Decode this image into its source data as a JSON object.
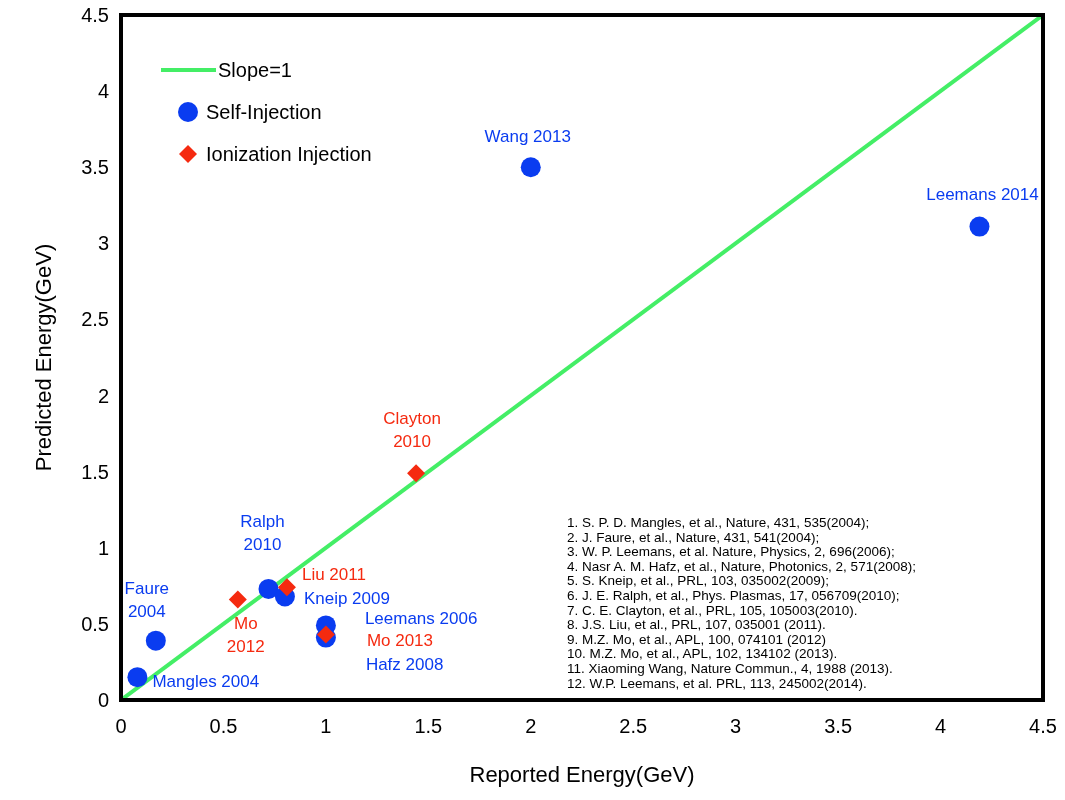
{
  "chart_data": {
    "type": "scatter",
    "xlabel": "Reported Energy(GeV)",
    "ylabel": "Predicted  Energy(GeV)",
    "xlim": [
      0,
      4.5
    ],
    "ylim": [
      0,
      4.5
    ],
    "xticks": [
      0,
      0.5,
      1,
      1.5,
      2,
      2.5,
      3,
      3.5,
      4,
      4.5
    ],
    "yticks": [
      0,
      0.5,
      1,
      1.5,
      2,
      2.5,
      3,
      3.5,
      4,
      4.5
    ],
    "grid": false,
    "legend": "top left",
    "series": [
      {
        "name": "Slope=1",
        "type": "line",
        "color": "#44ee66",
        "marker": "none",
        "x": [
          0,
          4.5
        ],
        "values": [
          0,
          4.5
        ]
      },
      {
        "name": "Self-Injection",
        "color": "#0a3cf0",
        "marker": "circle",
        "x": [
          0.08,
          0.17,
          0.72,
          0.8,
          1.0,
          1.0,
          2.0,
          4.19
        ],
        "values": [
          0.15,
          0.39,
          0.73,
          0.68,
          0.49,
          0.41,
          3.5,
          3.11
        ]
      },
      {
        "name": "Ionization Injection",
        "color": "#f52a10",
        "marker": "diamond",
        "x": [
          0.57,
          0.81,
          1.0,
          1.44
        ],
        "values": [
          0.66,
          0.74,
          0.43,
          1.49
        ]
      }
    ],
    "annotations": [
      {
        "text": "Mangles  2004",
        "x": 0.08,
        "y": 0.15
      },
      {
        "text": "Faure\n2004",
        "x": 0.17,
        "y": 0.39
      },
      {
        "text": "Ralph\n2010",
        "x": 0.72,
        "y": 0.73
      },
      {
        "text": "Kneip  2009",
        "x": 0.8,
        "y": 0.68
      },
      {
        "text": "Leemans 2006",
        "x": 1.0,
        "y": 0.49
      },
      {
        "text": "Hafz 2008",
        "x": 1.0,
        "y": 0.41
      },
      {
        "text": "Wang 2013",
        "x": 2.0,
        "y": 3.5
      },
      {
        "text": "Leemans 2014",
        "x": 4.19,
        "y": 3.11
      },
      {
        "text": "Mo\n2012",
        "x": 0.57,
        "y": 0.66
      },
      {
        "text": "Liu  2011",
        "x": 0.81,
        "y": 0.74
      },
      {
        "text": "Mo  2013",
        "x": 1.0,
        "y": 0.43
      },
      {
        "text": "Clayton\n2010",
        "x": 1.44,
        "y": 1.49
      },
      "1.   S. P. D. Mangles, et al.,  Nature, 431, 535(2004);",
      "2.   J. Faure, et al., Nature, 431, 541(2004);",
      "3.   W. P. Leemans, et al. Nature, Physics,  2,  696(2006);",
      "4.   Nasr A. M. Hafz, et al., Nature, Photonics,  2, 571(2008);",
      "5.   S. Kneip, et al., PRL, 103,  035002(2009);",
      "6.   J. E. Ralph, et al., Phys. Plasmas, 17, 056709(2010);",
      "7.   C. E. Clayton, et al., PRL, 105, 105003(2010).",
      "8.   J.S. Liu, et al., PRL, 107, 035001 (2011).",
      "9.   M.Z. Mo, et al., APL, 100, 074101 (2012)",
      "10. M.Z. Mo, et al., APL, 102, 134102 (2013).",
      "11. Xiaoming Wang, Nature  Commun., 4, 1988 (2013).",
      "12. W.P. Leemans, et al. PRL, 113, 245002(2014)."
    ]
  }
}
